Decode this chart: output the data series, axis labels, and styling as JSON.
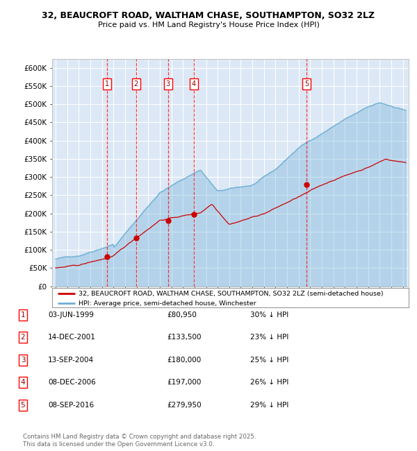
{
  "title_line1": "32, BEAUCROFT ROAD, WALTHAM CHASE, SOUTHAMPTON, SO32 2LZ",
  "title_line2": "Price paid vs. HM Land Registry's House Price Index (HPI)",
  "background_color": "#ffffff",
  "plot_bg_color": "#dce8f5",
  "grid_color": "#ffffff",
  "hpi_color": "#6baed6",
  "price_color": "#cc0000",
  "transactions": [
    {
      "num": 1,
      "date_label": "03-JUN-1999",
      "price": 80950,
      "pct": "30% ↓ HPI",
      "x_year": 1999.42
    },
    {
      "num": 2,
      "date_label": "14-DEC-2001",
      "price": 133500,
      "pct": "23% ↓ HPI",
      "x_year": 2001.95
    },
    {
      "num": 3,
      "date_label": "13-SEP-2004",
      "price": 180000,
      "pct": "25% ↓ HPI",
      "x_year": 2004.7
    },
    {
      "num": 4,
      "date_label": "08-DEC-2006",
      "price": 197000,
      "pct": "26% ↓ HPI",
      "x_year": 2006.93
    },
    {
      "num": 5,
      "date_label": "08-SEP-2016",
      "price": 279950,
      "pct": "29% ↓ HPI",
      "x_year": 2016.68
    }
  ],
  "legend_price_label": "32, BEAUCROFT ROAD, WALTHAM CHASE, SOUTHAMPTON, SO32 2LZ (semi-detached house)",
  "legend_hpi_label": "HPI: Average price, semi-detached house, Winchester",
  "footnote": "Contains HM Land Registry data © Crown copyright and database right 2025.\nThis data is licensed under the Open Government Licence v3.0.",
  "ylim": [
    0,
    625000
  ],
  "yticks": [
    0,
    50000,
    100000,
    150000,
    200000,
    250000,
    300000,
    350000,
    400000,
    450000,
    500000,
    550000,
    600000
  ],
  "xlim_start": 1994.7,
  "xlim_end": 2025.5
}
